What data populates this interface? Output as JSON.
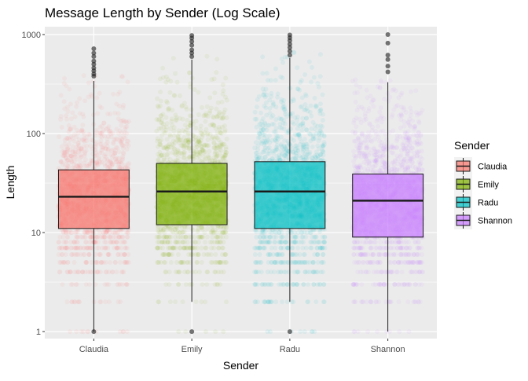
{
  "chart_data": {
    "type": "boxplot",
    "title": "Message Length by Sender (Log Scale)",
    "xlabel": "Sender",
    "ylabel": "Length",
    "y_scale": "log10",
    "ylim": [
      0.85,
      1200
    ],
    "y_ticks": [
      {
        "value": 1,
        "label": "1"
      },
      {
        "value": 10,
        "label": "10"
      },
      {
        "value": 100,
        "label": "100"
      },
      {
        "value": 1000,
        "label": "1000"
      }
    ],
    "categories": [
      "Claudia",
      "Emily",
      "Radu",
      "Shannon"
    ],
    "colors": [
      "#F8766D",
      "#7CAE00",
      "#00BFC4",
      "#C77CFF"
    ],
    "boxes": [
      {
        "name": "Claudia",
        "min": 1,
        "q1": 11,
        "median": 23,
        "q3": 43,
        "whisker_high": 340,
        "outliers": [
          1,
          380,
          400,
          430,
          460,
          500,
          540,
          600,
          650,
          720
        ]
      },
      {
        "name": "Emily",
        "min": 2,
        "q1": 12,
        "median": 26,
        "q3": 50,
        "whisker_high": 560,
        "outliers": [
          1,
          600,
          650,
          700,
          780,
          850,
          920,
          980
        ]
      },
      {
        "name": "Radu",
        "min": 2,
        "q1": 11,
        "median": 26,
        "q3": 52,
        "whisker_high": 580,
        "outliers": [
          1,
          620,
          680,
          740,
          800,
          870,
          930,
          990
        ]
      },
      {
        "name": "Shannon",
        "min": 1,
        "q1": 9,
        "median": 21,
        "q3": 39,
        "whisker_high": 330,
        "outliers": [
          420,
          480,
          560,
          620,
          820,
          1000
        ]
      }
    ],
    "legend": {
      "title": "Sender",
      "position": "right",
      "entries": [
        "Claudia",
        "Emily",
        "Radu",
        "Shannon"
      ]
    },
    "grid": true,
    "background": "#EBEBEB"
  }
}
